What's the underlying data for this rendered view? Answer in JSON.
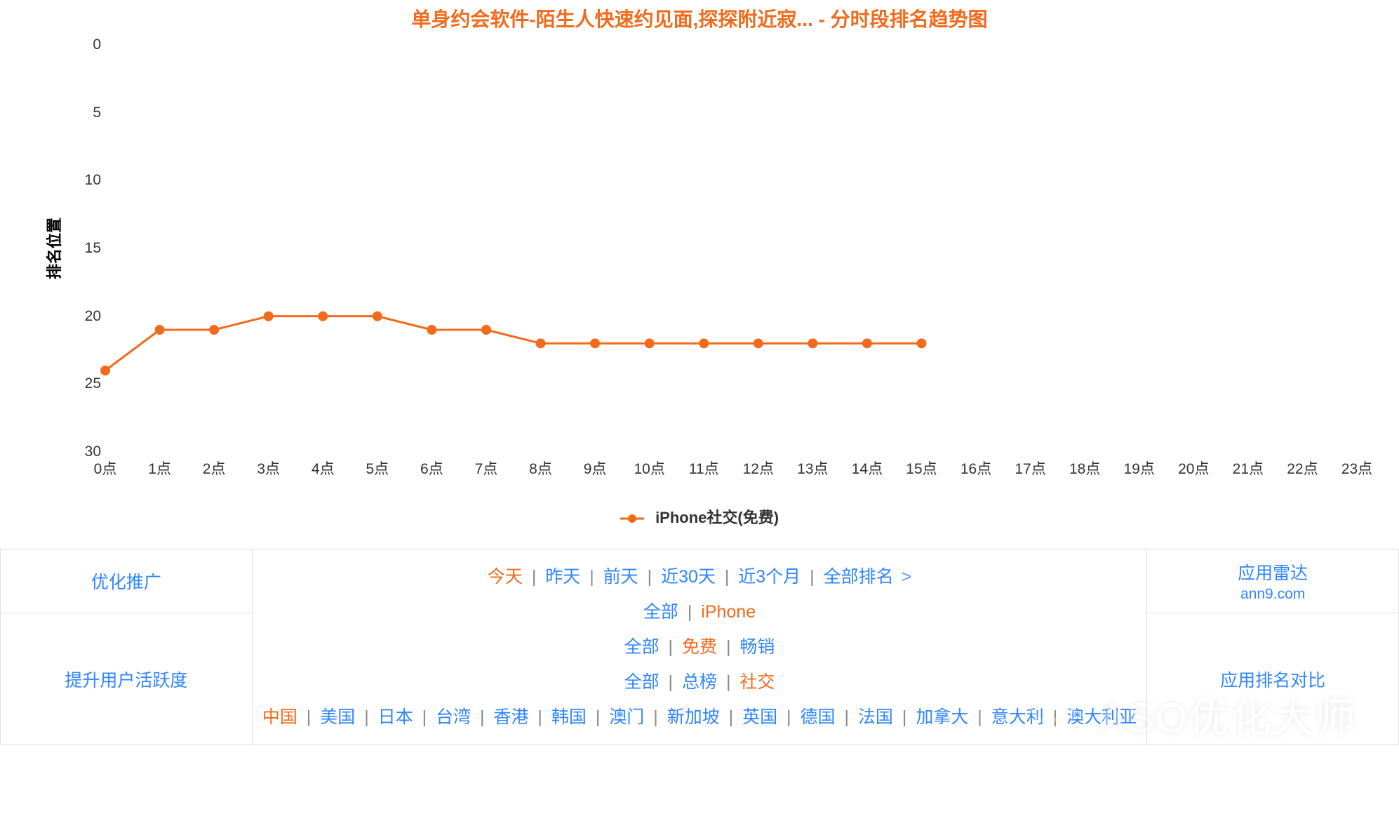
{
  "chart": {
    "title": "单身约会软件-陌生人快速约见面,探探附近寂... - 分时段排名趋势图",
    "title_color": "#f26a1b",
    "title_fontsize": 28,
    "ylabel": "排名位置",
    "type": "line",
    "y_inverted": true,
    "ylim": [
      0,
      30
    ],
    "ytick_step": 5,
    "yticks": [
      0,
      5,
      10,
      15,
      20,
      25,
      30
    ],
    "x_categories": [
      "0点",
      "1点",
      "2点",
      "3点",
      "4点",
      "5点",
      "6点",
      "7点",
      "8点",
      "9点",
      "10点",
      "11点",
      "12点",
      "13点",
      "14点",
      "15点",
      "16点",
      "17点",
      "18点",
      "19点",
      "20点",
      "21点",
      "22点",
      "23点"
    ],
    "series": [
      {
        "name": "iPhone社交(免费)",
        "color": "#f26a1b",
        "line_width": 3,
        "marker_radius": 7,
        "values": [
          24,
          21,
          21,
          20,
          20,
          20,
          21,
          21,
          22,
          22,
          22,
          22,
          22,
          22,
          22,
          22
        ]
      }
    ],
    "background_color": "#ffffff",
    "axis_text_color": "#333333"
  },
  "filters": {
    "side_left_top": "优化推广",
    "side_left_bottom": "提升用户活跃度",
    "side_right_top": "应用雷达",
    "side_right_top_sub": "ann9.com",
    "side_right_bottom": "应用排名对比",
    "row_time": [
      {
        "label": "今天",
        "active": true
      },
      {
        "label": "昨天",
        "active": false
      },
      {
        "label": "前天",
        "active": false
      },
      {
        "label": "近30天",
        "active": false
      },
      {
        "label": "近3个月",
        "active": false
      },
      {
        "label": "全部排名",
        "active": false,
        "arrow": true
      }
    ],
    "row_device": [
      {
        "label": "全部",
        "active": false
      },
      {
        "label": "iPhone",
        "active": true
      }
    ],
    "row_price": [
      {
        "label": "全部",
        "active": false
      },
      {
        "label": "免费",
        "active": true
      },
      {
        "label": "畅销",
        "active": false
      }
    ],
    "row_board": [
      {
        "label": "全部",
        "active": false
      },
      {
        "label": "总榜",
        "active": false
      },
      {
        "label": "社交",
        "active": true
      }
    ],
    "row_country": [
      {
        "label": "中国",
        "active": true
      },
      {
        "label": "美国",
        "active": false
      },
      {
        "label": "日本",
        "active": false
      },
      {
        "label": "台湾",
        "active": false
      },
      {
        "label": "香港",
        "active": false
      },
      {
        "label": "韩国",
        "active": false
      },
      {
        "label": "澳门",
        "active": false
      },
      {
        "label": "新加坡",
        "active": false
      },
      {
        "label": "英国",
        "active": false
      },
      {
        "label": "德国",
        "active": false
      },
      {
        "label": "法国",
        "active": false
      },
      {
        "label": "加拿大",
        "active": false
      },
      {
        "label": "意大利",
        "active": false
      },
      {
        "label": "澳大利亚",
        "active": false
      }
    ],
    "link_color": "#2f86ff",
    "active_color": "#f26a1b",
    "sep_text": "|"
  },
  "watermark": {
    "text": "ASO优化大师"
  }
}
